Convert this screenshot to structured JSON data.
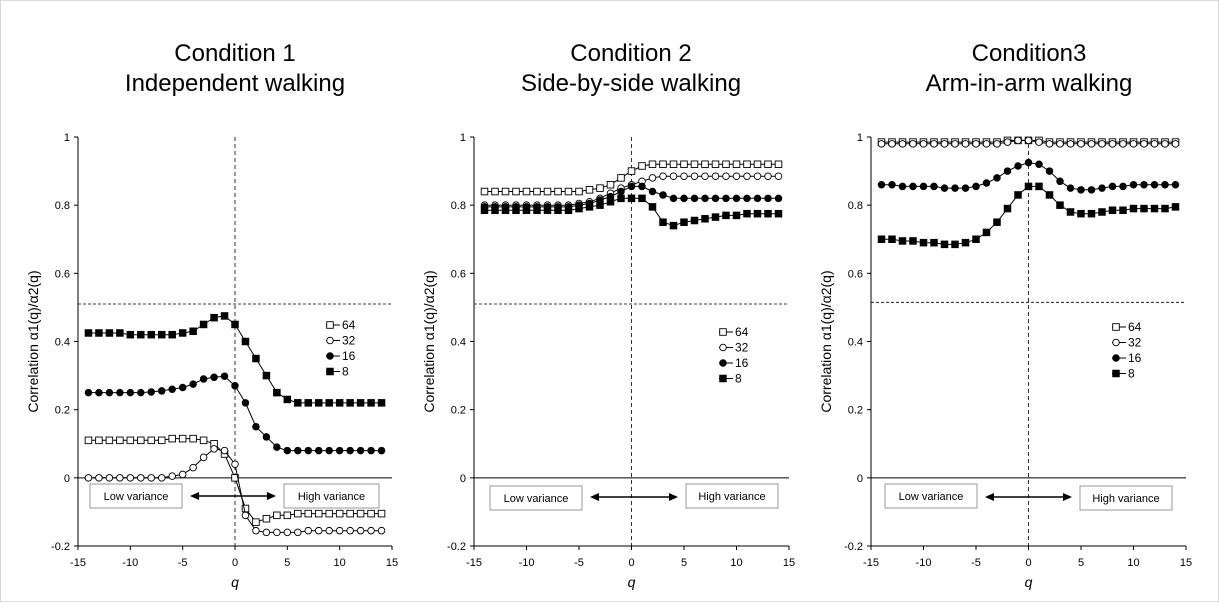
{
  "chart_data": [
    {
      "type": "line",
      "title": "Condition 1",
      "subtitle": "Independent walking",
      "xlabel": "q",
      "ylabel": "Correlation α1(q)/α2(q)",
      "xlim": [
        -15,
        15
      ],
      "ylim": [
        -0.2,
        1
      ],
      "xticks": [
        "-15",
        "-10",
        "-5",
        "0",
        "5",
        "10",
        "15"
      ],
      "yticks": [
        "-0.2",
        "0",
        "0.2",
        "0.4",
        "0.6",
        "0.8",
        "1"
      ],
      "x": [
        -14,
        -13,
        -12,
        -11,
        -10,
        -9,
        -8,
        -7,
        -6,
        -5,
        -4,
        -3,
        -2,
        -1,
        0,
        1,
        2,
        3,
        4,
        5,
        6,
        7,
        8,
        9,
        10,
        11,
        12,
        13,
        14
      ],
      "series": [
        {
          "name": "64",
          "marker": "open-square",
          "values": [
            0.11,
            0.11,
            0.11,
            0.11,
            0.11,
            0.11,
            0.11,
            0.11,
            0.115,
            0.115,
            0.115,
            0.11,
            0.1,
            0.07,
            0.0,
            -0.09,
            -0.13,
            -0.12,
            -0.11,
            -0.11,
            -0.105,
            -0.105,
            -0.105,
            -0.105,
            -0.105,
            -0.105,
            -0.105,
            -0.105,
            -0.105
          ]
        },
        {
          "name": "32",
          "marker": "open-circle",
          "values": [
            0.0,
            0.0,
            0.0,
            0.0,
            0.0,
            0.0,
            0.0,
            0.0,
            0.005,
            0.01,
            0.03,
            0.06,
            0.085,
            0.08,
            0.04,
            -0.11,
            -0.155,
            -0.16,
            -0.16,
            -0.16,
            -0.16,
            -0.155,
            -0.155,
            -0.155,
            -0.155,
            -0.155,
            -0.155,
            -0.155,
            -0.155
          ]
        },
        {
          "name": "16",
          "marker": "filled-circle",
          "values": [
            0.25,
            0.25,
            0.25,
            0.25,
            0.25,
            0.25,
            0.252,
            0.255,
            0.26,
            0.265,
            0.275,
            0.29,
            0.295,
            0.298,
            0.27,
            0.22,
            0.15,
            0.12,
            0.09,
            0.08,
            0.08,
            0.08,
            0.08,
            0.08,
            0.08,
            0.08,
            0.08,
            0.08,
            0.08
          ]
        },
        {
          "name": "8",
          "marker": "filled-square",
          "values": [
            0.425,
            0.425,
            0.425,
            0.425,
            0.42,
            0.42,
            0.42,
            0.42,
            0.42,
            0.425,
            0.43,
            0.45,
            0.47,
            0.475,
            0.45,
            0.4,
            0.35,
            0.3,
            0.25,
            0.23,
            0.22,
            0.22,
            0.22,
            0.22,
            0.22,
            0.22,
            0.22,
            0.22,
            0.22
          ]
        }
      ],
      "reference_line_y": 0.51,
      "reference_line_x": 0,
      "annotations": {
        "left": "Low variance",
        "right": "High variance"
      },
      "legend_position": "right"
    },
    {
      "type": "line",
      "title": "Condition 2",
      "subtitle": "Side-by-side walking",
      "xlabel": "q",
      "ylabel": "Correlation α1(q)/α2(q)",
      "xlim": [
        -15,
        15
      ],
      "ylim": [
        -0.2,
        1
      ],
      "xticks": [
        "-15",
        "-10",
        "-5",
        "0",
        "5",
        "10",
        "15"
      ],
      "yticks": [
        "-0.2",
        "0",
        "0.2",
        "0.4",
        "0.6",
        "0.8",
        "1"
      ],
      "x": [
        -14,
        -13,
        -12,
        -11,
        -10,
        -9,
        -8,
        -7,
        -6,
        -5,
        -4,
        -3,
        -2,
        -1,
        0,
        1,
        2,
        3,
        4,
        5,
        6,
        7,
        8,
        9,
        10,
        11,
        12,
        13,
        14
      ],
      "series": [
        {
          "name": "64",
          "marker": "open-square",
          "values": [
            0.84,
            0.84,
            0.84,
            0.84,
            0.84,
            0.84,
            0.84,
            0.84,
            0.84,
            0.84,
            0.845,
            0.85,
            0.86,
            0.88,
            0.9,
            0.915,
            0.92,
            0.92,
            0.92,
            0.92,
            0.92,
            0.92,
            0.92,
            0.92,
            0.92,
            0.92,
            0.92,
            0.92,
            0.92
          ]
        },
        {
          "name": "32",
          "marker": "open-circle",
          "values": [
            0.8,
            0.8,
            0.8,
            0.8,
            0.8,
            0.8,
            0.8,
            0.8,
            0.8,
            0.805,
            0.81,
            0.82,
            0.835,
            0.85,
            0.86,
            0.87,
            0.88,
            0.885,
            0.885,
            0.885,
            0.885,
            0.885,
            0.885,
            0.885,
            0.885,
            0.885,
            0.885,
            0.885,
            0.885
          ]
        },
        {
          "name": "16",
          "marker": "filled-circle",
          "values": [
            0.795,
            0.795,
            0.795,
            0.795,
            0.795,
            0.795,
            0.795,
            0.795,
            0.795,
            0.8,
            0.805,
            0.815,
            0.825,
            0.84,
            0.855,
            0.855,
            0.84,
            0.83,
            0.82,
            0.82,
            0.82,
            0.82,
            0.82,
            0.82,
            0.82,
            0.82,
            0.82,
            0.82,
            0.82
          ]
        },
        {
          "name": "8",
          "marker": "filled-square",
          "values": [
            0.785,
            0.785,
            0.785,
            0.785,
            0.785,
            0.785,
            0.785,
            0.785,
            0.785,
            0.79,
            0.795,
            0.8,
            0.81,
            0.82,
            0.82,
            0.82,
            0.795,
            0.75,
            0.74,
            0.75,
            0.755,
            0.76,
            0.765,
            0.77,
            0.77,
            0.775,
            0.775,
            0.775,
            0.775
          ]
        }
      ],
      "reference_line_y": 0.51,
      "reference_line_x": 0,
      "annotations": {
        "left": "Low variance",
        "right": "High variance"
      },
      "legend_position": "right"
    },
    {
      "type": "line",
      "title": "Condition3",
      "subtitle": "Arm-in-arm walking",
      "xlabel": "q",
      "ylabel": "Correlation α1(q)/α2(q)",
      "xlim": [
        -15,
        15
      ],
      "ylim": [
        -0.2,
        1
      ],
      "xticks": [
        "-15",
        "-10",
        "-5",
        "0",
        "5",
        "10",
        "15"
      ],
      "yticks": [
        "-0.2",
        "0",
        "0.2",
        "0.4",
        "0.6",
        "0.8",
        "1"
      ],
      "x": [
        -14,
        -13,
        -12,
        -11,
        -10,
        -9,
        -8,
        -7,
        -6,
        -5,
        -4,
        -3,
        -2,
        -1,
        0,
        1,
        2,
        3,
        4,
        5,
        6,
        7,
        8,
        9,
        10,
        11,
        12,
        13,
        14
      ],
      "series": [
        {
          "name": "64",
          "marker": "open-square",
          "values": [
            0.985,
            0.985,
            0.985,
            0.985,
            0.985,
            0.985,
            0.985,
            0.985,
            0.985,
            0.985,
            0.985,
            0.985,
            0.99,
            0.99,
            0.99,
            0.99,
            0.985,
            0.985,
            0.985,
            0.985,
            0.985,
            0.985,
            0.985,
            0.985,
            0.985,
            0.985,
            0.985,
            0.985,
            0.985
          ]
        },
        {
          "name": "32",
          "marker": "open-circle",
          "values": [
            0.98,
            0.98,
            0.98,
            0.98,
            0.98,
            0.98,
            0.98,
            0.98,
            0.98,
            0.98,
            0.98,
            0.98,
            0.985,
            0.99,
            0.99,
            0.985,
            0.98,
            0.98,
            0.98,
            0.98,
            0.98,
            0.98,
            0.98,
            0.98,
            0.98,
            0.98,
            0.98,
            0.98,
            0.98
          ]
        },
        {
          "name": "16",
          "marker": "filled-circle",
          "values": [
            0.86,
            0.86,
            0.855,
            0.855,
            0.855,
            0.855,
            0.85,
            0.85,
            0.85,
            0.855,
            0.865,
            0.88,
            0.9,
            0.915,
            0.925,
            0.92,
            0.9,
            0.87,
            0.85,
            0.845,
            0.845,
            0.85,
            0.855,
            0.855,
            0.86,
            0.86,
            0.86,
            0.86,
            0.86
          ]
        },
        {
          "name": "8",
          "marker": "filled-square",
          "values": [
            0.7,
            0.7,
            0.695,
            0.695,
            0.69,
            0.69,
            0.685,
            0.685,
            0.69,
            0.7,
            0.72,
            0.75,
            0.79,
            0.83,
            0.855,
            0.855,
            0.83,
            0.8,
            0.78,
            0.775,
            0.775,
            0.78,
            0.785,
            0.785,
            0.79,
            0.79,
            0.79,
            0.79,
            0.795
          ]
        }
      ],
      "reference_line_y": 0.515,
      "reference_line_x": 0,
      "annotations": {
        "left": "Low variance",
        "right": "High variance"
      },
      "legend_position": "right"
    }
  ]
}
